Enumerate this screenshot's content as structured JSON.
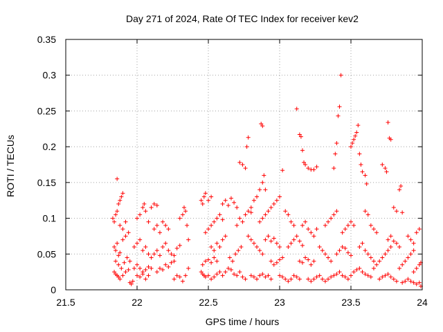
{
  "chart_data": {
    "type": "scatter",
    "title": "Day 271 of 2024, Rate Of TEC Index for receiver kev2",
    "xlabel": "GPS time / hours",
    "ylabel": "ROTI / TECUs",
    "xlim": [
      21.5,
      24
    ],
    "ylim": [
      0,
      0.35
    ],
    "x_ticks": [
      21.5,
      22,
      22.5,
      23,
      23.5,
      24
    ],
    "x_tick_labels": [
      "21.5",
      "22",
      "22.5",
      "23",
      "23.5",
      "24"
    ],
    "y_ticks": [
      0,
      0.05,
      0.1,
      0.15,
      0.2,
      0.25,
      0.3,
      0.35
    ],
    "y_tick_labels": [
      "0",
      "0.05",
      "0.1",
      "0.15",
      "0.2",
      "0.25",
      "0.3",
      "0.35"
    ],
    "grid": true,
    "marker": "+",
    "color": "#ff0000",
    "points": [
      [
        21.83,
        0.1
      ],
      [
        21.84,
        0.095
      ],
      [
        21.85,
        0.105
      ],
      [
        21.86,
        0.11
      ],
      [
        21.86,
        0.155
      ],
      [
        21.87,
        0.12
      ],
      [
        21.88,
        0.125
      ],
      [
        21.89,
        0.13
      ],
      [
        21.9,
        0.135
      ],
      [
        21.84,
        0.06
      ],
      [
        21.85,
        0.055
      ],
      [
        21.86,
        0.065
      ],
      [
        21.87,
        0.048
      ],
      [
        21.88,
        0.052
      ],
      [
        21.9,
        0.07
      ],
      [
        21.92,
        0.075
      ],
      [
        21.84,
        0.025
      ],
      [
        21.85,
        0.022
      ],
      [
        21.86,
        0.02
      ],
      [
        21.87,
        0.018
      ],
      [
        21.88,
        0.015
      ],
      [
        21.9,
        0.02
      ],
      [
        21.92,
        0.025
      ],
      [
        21.94,
        0.028
      ],
      [
        21.85,
        0.04
      ],
      [
        21.87,
        0.035
      ],
      [
        21.89,
        0.03
      ],
      [
        21.91,
        0.038
      ],
      [
        21.93,
        0.045
      ],
      [
        21.95,
        0.04
      ],
      [
        21.88,
        0.09
      ],
      [
        21.9,
        0.085
      ],
      [
        21.92,
        0.095
      ],
      [
        21.94,
        0.08
      ],
      [
        21.95,
        0.01
      ],
      [
        21.96,
        0.008
      ],
      [
        21.97,
        0.012
      ],
      [
        21.98,
        0.03
      ],
      [
        22.0,
        0.035
      ],
      [
        22.02,
        0.03
      ],
      [
        22.04,
        0.025
      ],
      [
        22.06,
        0.028
      ],
      [
        22.08,
        0.032
      ],
      [
        22.1,
        0.03
      ],
      [
        21.98,
        0.06
      ],
      [
        22.0,
        0.065
      ],
      [
        22.02,
        0.07
      ],
      [
        22.04,
        0.055
      ],
      [
        22.06,
        0.06
      ],
      [
        22.08,
        0.05
      ],
      [
        22.0,
        0.1
      ],
      [
        22.02,
        0.105
      ],
      [
        22.04,
        0.115
      ],
      [
        22.05,
        0.12
      ],
      [
        22.06,
        0.11
      ],
      [
        22.08,
        0.095
      ],
      [
        22.1,
        0.115
      ],
      [
        22.12,
        0.12
      ],
      [
        22.14,
        0.118
      ],
      [
        22.0,
        0.02
      ],
      [
        22.02,
        0.018
      ],
      [
        22.04,
        0.022
      ],
      [
        22.06,
        0.015
      ],
      [
        22.08,
        0.02
      ],
      [
        22.1,
        0.045
      ],
      [
        22.12,
        0.05
      ],
      [
        22.14,
        0.055
      ],
      [
        22.16,
        0.048
      ],
      [
        22.18,
        0.06
      ],
      [
        22.2,
        0.065
      ],
      [
        22.12,
        0.085
      ],
      [
        22.14,
        0.09
      ],
      [
        22.16,
        0.08
      ],
      [
        22.18,
        0.095
      ],
      [
        22.2,
        0.09
      ],
      [
        22.22,
        0.085
      ],
      [
        22.14,
        0.025
      ],
      [
        22.16,
        0.03
      ],
      [
        22.18,
        0.028
      ],
      [
        22.2,
        0.035
      ],
      [
        22.22,
        0.032
      ],
      [
        22.24,
        0.038
      ],
      [
        22.26,
        0.04
      ],
      [
        22.22,
        0.055
      ],
      [
        22.24,
        0.05
      ],
      [
        22.26,
        0.048
      ],
      [
        22.28,
        0.058
      ],
      [
        22.3,
        0.062
      ],
      [
        22.26,
        0.015
      ],
      [
        22.28,
        0.02
      ],
      [
        22.3,
        0.018
      ],
      [
        22.32,
        0.012
      ],
      [
        22.34,
        0.02
      ],
      [
        22.36,
        0.03
      ],
      [
        22.3,
        0.1
      ],
      [
        22.32,
        0.105
      ],
      [
        22.33,
        0.115
      ],
      [
        22.34,
        0.11
      ],
      [
        22.35,
        0.09
      ],
      [
        22.36,
        0.07
      ],
      [
        22.45,
        0.125
      ],
      [
        22.46,
        0.12
      ],
      [
        22.47,
        0.13
      ],
      [
        22.48,
        0.135
      ],
      [
        22.5,
        0.125
      ],
      [
        22.52,
        0.13
      ],
      [
        22.45,
        0.025
      ],
      [
        22.46,
        0.022
      ],
      [
        22.47,
        0.02
      ],
      [
        22.48,
        0.018
      ],
      [
        22.5,
        0.02
      ],
      [
        22.52,
        0.015
      ],
      [
        22.54,
        0.018
      ],
      [
        22.56,
        0.022
      ],
      [
        22.58,
        0.025
      ],
      [
        22.6,
        0.02
      ],
      [
        22.46,
        0.035
      ],
      [
        22.48,
        0.04
      ],
      [
        22.5,
        0.042
      ],
      [
        22.52,
        0.038
      ],
      [
        22.54,
        0.045
      ],
      [
        22.56,
        0.04
      ],
      [
        22.48,
        0.08
      ],
      [
        22.5,
        0.085
      ],
      [
        22.52,
        0.09
      ],
      [
        22.54,
        0.095
      ],
      [
        22.56,
        0.1
      ],
      [
        22.58,
        0.105
      ],
      [
        22.6,
        0.098
      ],
      [
        22.52,
        0.06
      ],
      [
        22.54,
        0.055
      ],
      [
        22.56,
        0.065
      ],
      [
        22.58,
        0.06
      ],
      [
        22.6,
        0.07
      ],
      [
        22.62,
        0.075
      ],
      [
        22.6,
        0.12
      ],
      [
        22.62,
        0.125
      ],
      [
        22.64,
        0.118
      ],
      [
        22.66,
        0.128
      ],
      [
        22.68,
        0.122
      ],
      [
        22.7,
        0.115
      ],
      [
        22.62,
        0.025
      ],
      [
        22.64,
        0.03
      ],
      [
        22.66,
        0.028
      ],
      [
        22.68,
        0.022
      ],
      [
        22.7,
        0.02
      ],
      [
        22.72,
        0.025
      ],
      [
        22.74,
        0.018
      ],
      [
        22.76,
        0.015
      ],
      [
        22.65,
        0.045
      ],
      [
        22.67,
        0.04
      ],
      [
        22.69,
        0.05
      ],
      [
        22.71,
        0.055
      ],
      [
        22.73,
        0.06
      ],
      [
        22.7,
        0.09
      ],
      [
        22.72,
        0.1
      ],
      [
        22.74,
        0.095
      ],
      [
        22.76,
        0.105
      ],
      [
        22.78,
        0.11
      ],
      [
        22.8,
        0.108
      ],
      [
        22.72,
        0.178
      ],
      [
        22.74,
        0.175
      ],
      [
        22.76,
        0.17
      ],
      [
        22.77,
        0.2
      ],
      [
        22.78,
        0.213
      ],
      [
        22.8,
        0.115
      ],
      [
        22.78,
        0.075
      ],
      [
        22.8,
        0.07
      ],
      [
        22.82,
        0.065
      ],
      [
        22.84,
        0.06
      ],
      [
        22.86,
        0.055
      ],
      [
        22.88,
        0.05
      ],
      [
        22.8,
        0.02
      ],
      [
        22.82,
        0.018
      ],
      [
        22.84,
        0.015
      ],
      [
        22.86,
        0.02
      ],
      [
        22.88,
        0.022
      ],
      [
        22.9,
        0.018
      ],
      [
        22.92,
        0.02
      ],
      [
        22.94,
        0.015
      ],
      [
        22.82,
        0.125
      ],
      [
        22.84,
        0.13
      ],
      [
        22.86,
        0.14
      ],
      [
        22.88,
        0.15
      ],
      [
        22.89,
        0.16
      ],
      [
        22.9,
        0.14
      ],
      [
        22.87,
        0.232
      ],
      [
        22.88,
        0.229
      ],
      [
        22.86,
        0.095
      ],
      [
        22.88,
        0.1
      ],
      [
        22.9,
        0.105
      ],
      [
        22.92,
        0.11
      ],
      [
        22.94,
        0.115
      ],
      [
        22.96,
        0.12
      ],
      [
        22.98,
        0.125
      ],
      [
        23.0,
        0.13
      ],
      [
        22.9,
        0.07
      ],
      [
        22.92,
        0.075
      ],
      [
        22.94,
        0.068
      ],
      [
        22.96,
        0.072
      ],
      [
        22.98,
        0.065
      ],
      [
        23.0,
        0.06
      ],
      [
        22.94,
        0.04
      ],
      [
        22.96,
        0.035
      ],
      [
        22.98,
        0.038
      ],
      [
        23.0,
        0.042
      ],
      [
        23.02,
        0.045
      ],
      [
        23.0,
        0.02
      ],
      [
        23.02,
        0.018
      ],
      [
        23.04,
        0.015
      ],
      [
        23.06,
        0.012
      ],
      [
        23.08,
        0.015
      ],
      [
        23.1,
        0.02
      ],
      [
        23.12,
        0.018
      ],
      [
        23.14,
        0.015
      ],
      [
        23.02,
        0.167
      ],
      [
        23.04,
        0.11
      ],
      [
        23.06,
        0.105
      ],
      [
        23.08,
        0.095
      ],
      [
        23.1,
        0.09
      ],
      [
        23.06,
        0.06
      ],
      [
        23.08,
        0.065
      ],
      [
        23.1,
        0.07
      ],
      [
        23.12,
        0.075
      ],
      [
        23.14,
        0.068
      ],
      [
        23.16,
        0.062
      ],
      [
        23.12,
        0.253
      ],
      [
        23.14,
        0.217
      ],
      [
        23.15,
        0.214
      ],
      [
        23.16,
        0.195
      ],
      [
        23.17,
        0.178
      ],
      [
        23.18,
        0.175
      ],
      [
        23.2,
        0.17
      ],
      [
        23.22,
        0.168
      ],
      [
        23.24,
        0.168
      ],
      [
        23.26,
        0.172
      ],
      [
        23.14,
        0.04
      ],
      [
        23.16,
        0.038
      ],
      [
        23.18,
        0.045
      ],
      [
        23.2,
        0.042
      ],
      [
        23.22,
        0.035
      ],
      [
        23.24,
        0.04
      ],
      [
        23.16,
        0.09
      ],
      [
        23.18,
        0.095
      ],
      [
        23.2,
        0.085
      ],
      [
        23.22,
        0.08
      ],
      [
        23.24,
        0.075
      ],
      [
        23.26,
        0.085
      ],
      [
        23.2,
        0.015
      ],
      [
        23.22,
        0.012
      ],
      [
        23.24,
        0.015
      ],
      [
        23.26,
        0.018
      ],
      [
        23.28,
        0.02
      ],
      [
        23.3,
        0.015
      ],
      [
        23.32,
        0.012
      ],
      [
        23.34,
        0.015
      ],
      [
        23.36,
        0.018
      ],
      [
        23.28,
        0.06
      ],
      [
        23.3,
        0.055
      ],
      [
        23.32,
        0.05
      ],
      [
        23.34,
        0.045
      ],
      [
        23.36,
        0.04
      ],
      [
        23.32,
        0.09
      ],
      [
        23.34,
        0.095
      ],
      [
        23.36,
        0.1
      ],
      [
        23.38,
        0.105
      ],
      [
        23.4,
        0.11
      ],
      [
        23.38,
        0.17
      ],
      [
        23.39,
        0.19
      ],
      [
        23.4,
        0.205
      ],
      [
        23.41,
        0.243
      ],
      [
        23.42,
        0.256
      ],
      [
        23.43,
        0.3
      ],
      [
        23.38,
        0.02
      ],
      [
        23.4,
        0.022
      ],
      [
        23.42,
        0.025
      ],
      [
        23.44,
        0.02
      ],
      [
        23.46,
        0.018
      ],
      [
        23.48,
        0.015
      ],
      [
        23.5,
        0.02
      ],
      [
        23.4,
        0.05
      ],
      [
        23.42,
        0.055
      ],
      [
        23.44,
        0.06
      ],
      [
        23.46,
        0.058
      ],
      [
        23.48,
        0.052
      ],
      [
        23.5,
        0.048
      ],
      [
        23.44,
        0.08
      ],
      [
        23.46,
        0.085
      ],
      [
        23.48,
        0.09
      ],
      [
        23.5,
        0.095
      ],
      [
        23.52,
        0.09
      ],
      [
        23.5,
        0.2
      ],
      [
        23.51,
        0.205
      ],
      [
        23.52,
        0.21
      ],
      [
        23.53,
        0.215
      ],
      [
        23.54,
        0.22
      ],
      [
        23.55,
        0.23
      ],
      [
        23.56,
        0.19
      ],
      [
        23.57,
        0.175
      ],
      [
        23.58,
        0.165
      ],
      [
        23.6,
        0.16
      ],
      [
        23.61,
        0.148
      ],
      [
        23.52,
        0.025
      ],
      [
        23.54,
        0.028
      ],
      [
        23.56,
        0.03
      ],
      [
        23.58,
        0.025
      ],
      [
        23.6,
        0.022
      ],
      [
        23.62,
        0.02
      ],
      [
        23.64,
        0.018
      ],
      [
        23.56,
        0.06
      ],
      [
        23.58,
        0.065
      ],
      [
        23.6,
        0.055
      ],
      [
        23.62,
        0.05
      ],
      [
        23.64,
        0.045
      ],
      [
        23.66,
        0.04
      ],
      [
        23.6,
        0.11
      ],
      [
        23.62,
        0.105
      ],
      [
        23.64,
        0.09
      ],
      [
        23.66,
        0.085
      ],
      [
        23.68,
        0.08
      ],
      [
        23.66,
        0.03
      ],
      [
        23.68,
        0.035
      ],
      [
        23.7,
        0.04
      ],
      [
        23.72,
        0.045
      ],
      [
        23.74,
        0.05
      ],
      [
        23.76,
        0.055
      ],
      [
        23.78,
        0.06
      ],
      [
        23.72,
        0.175
      ],
      [
        23.74,
        0.17
      ],
      [
        23.75,
        0.165
      ],
      [
        23.76,
        0.234
      ],
      [
        23.77,
        0.212
      ],
      [
        23.78,
        0.21
      ],
      [
        23.7,
        0.015
      ],
      [
        23.72,
        0.018
      ],
      [
        23.74,
        0.02
      ],
      [
        23.76,
        0.022
      ],
      [
        23.78,
        0.018
      ],
      [
        23.8,
        0.015
      ],
      [
        23.82,
        0.012
      ],
      [
        23.76,
        0.07
      ],
      [
        23.78,
        0.075
      ],
      [
        23.8,
        0.068
      ],
      [
        23.82,
        0.065
      ],
      [
        23.84,
        0.06
      ],
      [
        23.8,
        0.115
      ],
      [
        23.82,
        0.11
      ],
      [
        23.84,
        0.14
      ],
      [
        23.85,
        0.145
      ],
      [
        23.86,
        0.108
      ],
      [
        23.84,
        0.03
      ],
      [
        23.86,
        0.035
      ],
      [
        23.88,
        0.04
      ],
      [
        23.9,
        0.045
      ],
      [
        23.92,
        0.05
      ],
      [
        23.94,
        0.055
      ],
      [
        23.86,
        0.01
      ],
      [
        23.88,
        0.012
      ],
      [
        23.9,
        0.015
      ],
      [
        23.92,
        0.012
      ],
      [
        23.94,
        0.01
      ],
      [
        23.96,
        0.008
      ],
      [
        23.98,
        0.01
      ],
      [
        23.99,
        0.005
      ],
      [
        23.9,
        0.075
      ],
      [
        23.92,
        0.07
      ],
      [
        23.94,
        0.065
      ],
      [
        23.96,
        0.08
      ],
      [
        23.98,
        0.085
      ],
      [
        23.94,
        0.025
      ],
      [
        23.96,
        0.03
      ],
      [
        23.98,
        0.035
      ],
      [
        23.99,
        0.038
      ]
    ]
  }
}
